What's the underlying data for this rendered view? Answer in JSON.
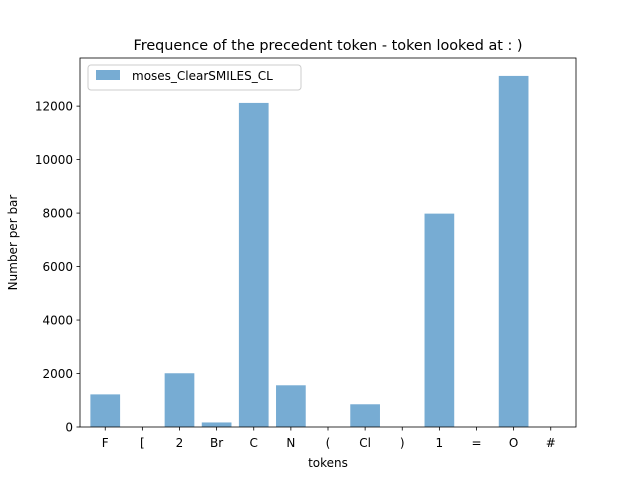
{
  "chart_data": {
    "type": "bar",
    "title": "Frequence of the precedent token - token looked at : )",
    "xlabel": "tokens",
    "ylabel": "Number per bar",
    "categories": [
      "F",
      "[",
      "2",
      "Br",
      "C",
      "N",
      "(",
      "Cl",
      ")",
      "1",
      "=",
      "O",
      "#"
    ],
    "series": [
      {
        "name": "moses_ClearSMILES_CL",
        "values": [
          1220,
          0,
          2010,
          170,
          12120,
          1560,
          0,
          850,
          0,
          7980,
          0,
          13130,
          0
        ]
      }
    ],
    "ylim": [
      0,
      13800
    ],
    "yticks": [
      0,
      2000,
      4000,
      6000,
      8000,
      10000,
      12000
    ],
    "grid": false,
    "legend_position": "upper left"
  },
  "colors": {
    "bar": "#77acd3",
    "axis": "#000000",
    "background": "#ffffff"
  }
}
